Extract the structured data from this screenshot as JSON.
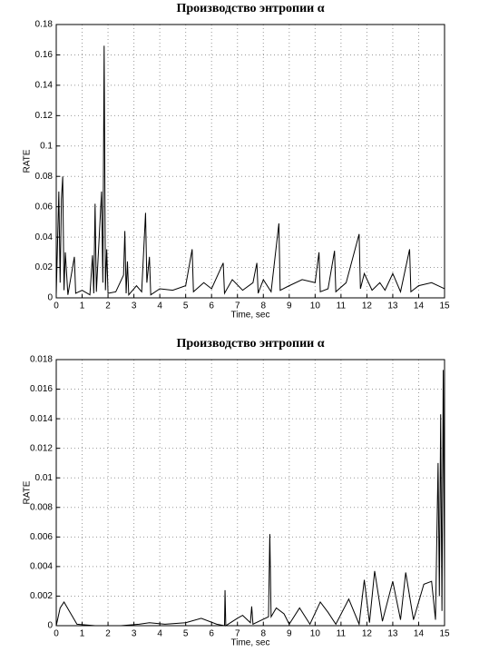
{
  "chart_data": [
    {
      "type": "line",
      "title": "Производство энтропии α",
      "x_label": "Time, sec",
      "y_label": "RATE",
      "xlim": [
        0,
        15
      ],
      "xticks": [
        0,
        1,
        2,
        3,
        4,
        5,
        6,
        7,
        8,
        9,
        10,
        11,
        12,
        13,
        14,
        15
      ],
      "ylim": [
        0,
        0.18
      ],
      "yticks": [
        0,
        0.02,
        0.04,
        0.06,
        0.08,
        0.1,
        0.12,
        0.14,
        0.16,
        0.18
      ],
      "grid": true,
      "color": "#000000",
      "x": [
        0,
        0.1,
        0.15,
        0.2,
        0.25,
        0.3,
        0.35,
        0.45,
        0.7,
        0.75,
        1.0,
        1.3,
        1.4,
        1.45,
        1.5,
        1.55,
        1.75,
        1.8,
        1.85,
        1.9,
        1.95,
        2.0,
        2.3,
        2.6,
        2.65,
        2.7,
        2.75,
        2.8,
        3.1,
        3.3,
        3.45,
        3.5,
        3.6,
        3.65,
        4.0,
        4.5,
        5.0,
        5.25,
        5.3,
        5.7,
        6.0,
        6.45,
        6.5,
        6.8,
        7.2,
        7.6,
        7.75,
        7.8,
        8.0,
        8.3,
        8.6,
        8.65,
        9.0,
        9.5,
        10.0,
        10.15,
        10.2,
        10.5,
        10.75,
        10.8,
        11.2,
        11.7,
        11.75,
        11.9,
        12.2,
        12.5,
        12.7,
        13.0,
        13.3,
        13.65,
        13.7,
        14.0,
        14.5,
        15.0
      ],
      "values": [
        0.002,
        0.07,
        0.01,
        0.065,
        0.08,
        0.005,
        0.03,
        0.002,
        0.027,
        0.003,
        0.005,
        0.002,
        0.028,
        0.003,
        0.062,
        0.004,
        0.07,
        0.01,
        0.166,
        0.005,
        0.032,
        0.003,
        0.004,
        0.015,
        0.044,
        0.003,
        0.024,
        0.002,
        0.008,
        0.004,
        0.056,
        0.01,
        0.027,
        0.002,
        0.006,
        0.005,
        0.008,
        0.032,
        0.004,
        0.01,
        0.006,
        0.023,
        0.003,
        0.012,
        0.005,
        0.01,
        0.023,
        0.003,
        0.012,
        0.004,
        0.049,
        0.005,
        0.008,
        0.012,
        0.01,
        0.03,
        0.004,
        0.006,
        0.031,
        0.004,
        0.01,
        0.042,
        0.006,
        0.016,
        0.005,
        0.01,
        0.005,
        0.016,
        0.004,
        0.032,
        0.004,
        0.008,
        0.01,
        0.006
      ]
    },
    {
      "type": "line",
      "title": "Производство энтропии α",
      "x_label": "Time, sec",
      "y_label": "RATE",
      "xlim": [
        0,
        15
      ],
      "xticks": [
        0,
        1,
        2,
        3,
        4,
        5,
        6,
        7,
        8,
        9,
        10,
        11,
        12,
        13,
        14,
        15
      ],
      "ylim": [
        0,
        0.018
      ],
      "yticks": [
        0,
        0.002,
        0.004,
        0.006,
        0.008,
        0.01,
        0.012,
        0.014,
        0.016,
        0.018
      ],
      "grid": true,
      "color": "#000000",
      "x": [
        0,
        0.15,
        0.3,
        0.5,
        0.8,
        1.5,
        2.5,
        3.2,
        3.6,
        4.2,
        5,
        5.6,
        6.2,
        6.5,
        6.52,
        6.55,
        7.0,
        7.2,
        7.5,
        7.55,
        7.6,
        8.2,
        8.25,
        8.3,
        8.5,
        8.8,
        9.0,
        9.4,
        9.8,
        10.2,
        10.5,
        10.8,
        11.3,
        11.7,
        11.9,
        12.1,
        12.3,
        12.6,
        13.0,
        13.3,
        13.5,
        13.8,
        14.2,
        14.5,
        14.65,
        14.75,
        14.8,
        14.85,
        14.9,
        14.95,
        15
      ],
      "values": [
        0,
        0.0012,
        0.0016,
        0.001,
        0.0001,
        0,
        0,
        0.0001,
        0.0002,
        0.0001,
        0.0002,
        0.0005,
        0.0001,
        0,
        0.0024,
        0,
        0.0005,
        0.0007,
        0.0002,
        0.0013,
        0.0001,
        0.0006,
        0.0062,
        0.0006,
        0.0012,
        0.0008,
        0.0001,
        0.0012,
        0.0001,
        0.0016,
        0.0009,
        0.0001,
        0.0018,
        0.0001,
        0.0031,
        0.0002,
        0.0037,
        0.0003,
        0.003,
        0.0004,
        0.0036,
        0.0004,
        0.0028,
        0.003,
        0.0004,
        0.011,
        0.002,
        0.0143,
        0.001,
        0.0173,
        0.003
      ]
    }
  ]
}
